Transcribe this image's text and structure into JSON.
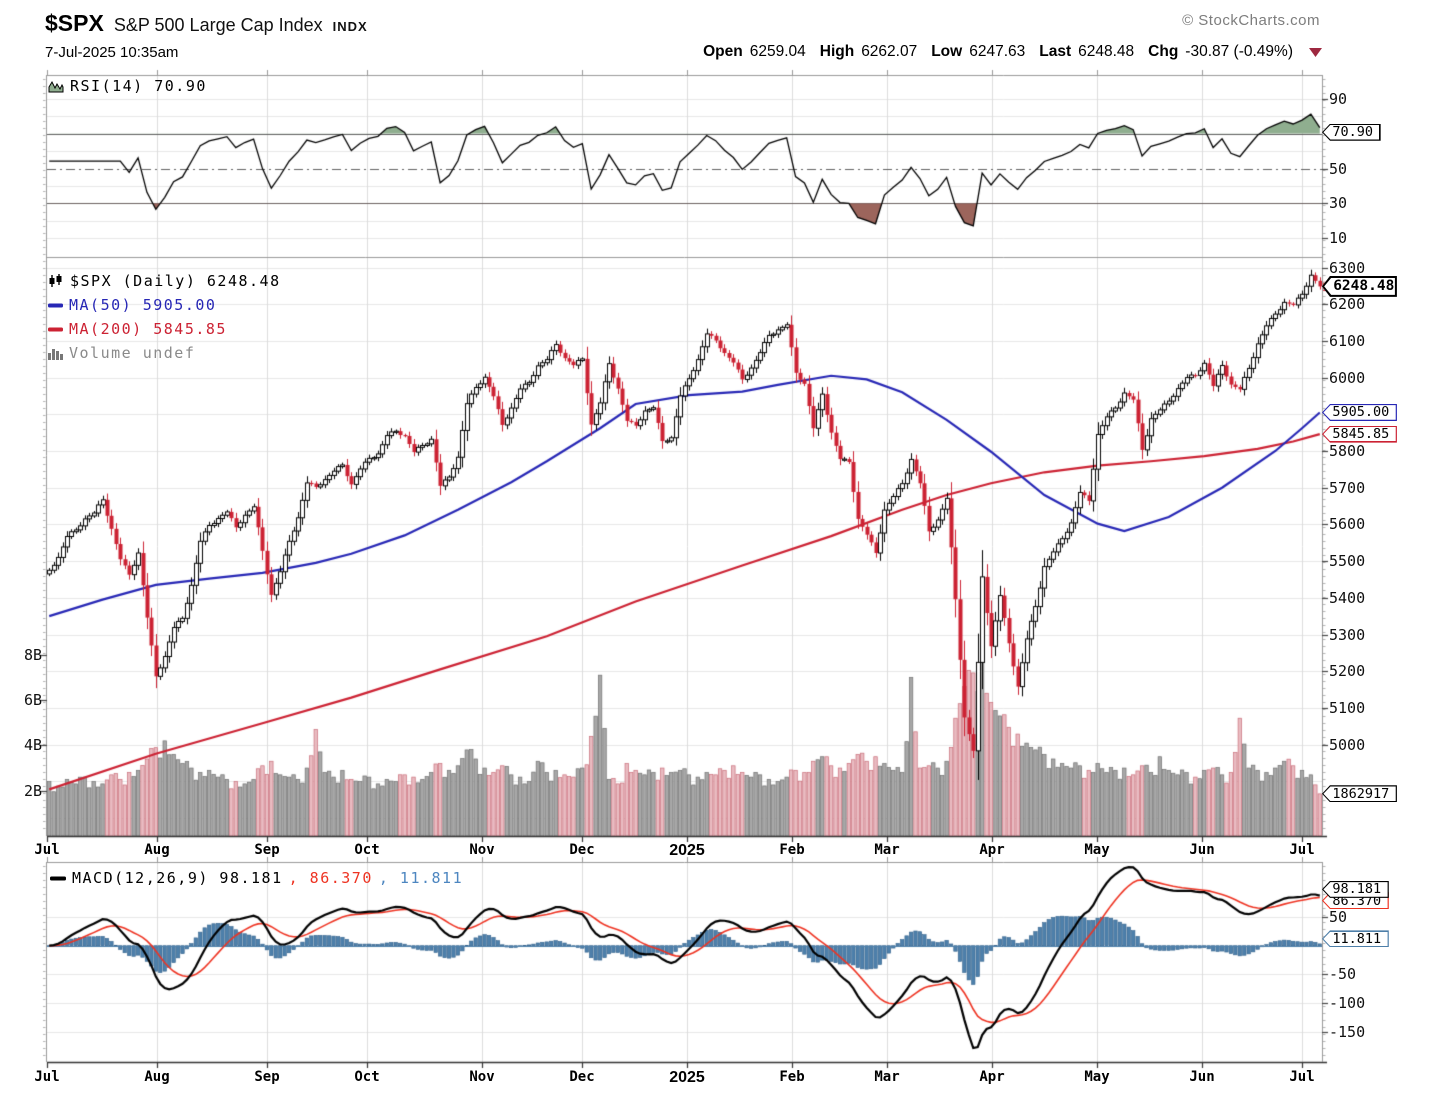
{
  "header": {
    "symbol": "$SPX",
    "name": "S&P 500 Large Cap Index",
    "exchange": "INDX",
    "datetime": "7-Jul-2025 10:35am",
    "copyright": "© StockCharts.com",
    "quote": {
      "open_label": "Open",
      "open": "6259.04",
      "high_label": "High",
      "high": "6262.07",
      "low_label": "Low",
      "low": "6247.63",
      "last_label": "Last",
      "last": "6248.48",
      "chg_label": "Chg",
      "chg": "-30.87 (-0.49%)",
      "direction": "down",
      "direction_color": "#9e2840"
    }
  },
  "colors": {
    "candle_up_fill": "#ffffff",
    "candle_up_border": "#000000",
    "candle_down": "#cc2233",
    "ma50": "#2727b5",
    "ma200": "#cc2233",
    "volume_up_fill": "#a8a8a8",
    "volume_up_border": "#6f6f6f",
    "volume_down_fill": "#e9bcc2",
    "volume_down_border": "#c96c78",
    "rsi_line": "#000000",
    "rsi_fill_high": "#8fae8f",
    "rsi_fill_low": "#9c655c",
    "macd_line": "#000000",
    "macd_signal": "#ee3322",
    "macd_hist_fill": "#4e80ab",
    "macd_hist_border": "#2f5f8a",
    "grid_light": "#e7e7e7",
    "grid_month": "#dcdcdc",
    "level_dark": "#606060",
    "axis_dark": "#333333",
    "panel_border": "#999999",
    "last_marker_fill": "#ffd24d",
    "last_marker_border": "#cc2233"
  },
  "chart_data": [
    {
      "id": "rsi",
      "type": "line",
      "legend": "RSI(14) 70.90",
      "period": 14,
      "calc_period_pts": 8,
      "last": 70.9,
      "last_label": "70.90",
      "ylim": [
        0,
        100
      ],
      "y_ticks": [
        90,
        50,
        30,
        10
      ],
      "overbought": 70,
      "oversold": 30,
      "mid": 50,
      "grid": [
        90,
        80,
        60,
        40,
        20,
        10
      ]
    },
    {
      "id": "price",
      "type": "candlestick",
      "legend": "$SPX (Daily) 6248.48",
      "last": 6248.48,
      "last_label": "6248.48",
      "ma50": {
        "label": "MA(50) 5905.00",
        "value": 5905.0,
        "box": "5905.00",
        "keypoints": [
          [
            0,
            5350
          ],
          [
            6,
            5395
          ],
          [
            12,
            5435
          ],
          [
            18,
            5452
          ],
          [
            24,
            5468
          ],
          [
            30,
            5495
          ],
          [
            34,
            5520
          ],
          [
            40,
            5570
          ],
          [
            46,
            5640
          ],
          [
            52,
            5715
          ],
          [
            56,
            5772
          ],
          [
            62,
            5862
          ],
          [
            66,
            5928
          ],
          [
            72,
            5952
          ],
          [
            78,
            5962
          ],
          [
            82,
            5980
          ],
          [
            88,
            6005
          ],
          [
            92,
            5995
          ],
          [
            96,
            5960
          ],
          [
            101,
            5885
          ],
          [
            106,
            5798
          ],
          [
            112,
            5680
          ],
          [
            118,
            5602
          ],
          [
            121,
            5582
          ],
          [
            126,
            5620
          ],
          [
            132,
            5700
          ],
          [
            138,
            5800
          ],
          [
            141,
            5862
          ],
          [
            143,
            5905
          ]
        ]
      },
      "ma200": {
        "label": "MA(200) 5845.85",
        "value": 5845.85,
        "box": "5845.85",
        "keypoints": [
          [
            0,
            4878
          ],
          [
            12,
            4975
          ],
          [
            24,
            5058
          ],
          [
            34,
            5128
          ],
          [
            44,
            5205
          ],
          [
            56,
            5295
          ],
          [
            66,
            5390
          ],
          [
            78,
            5488
          ],
          [
            88,
            5568
          ],
          [
            96,
            5640
          ],
          [
            101,
            5680
          ],
          [
            106,
            5712
          ],
          [
            112,
            5742
          ],
          [
            118,
            5760
          ],
          [
            124,
            5772
          ],
          [
            130,
            5786
          ],
          [
            136,
            5806
          ],
          [
            140,
            5826
          ],
          [
            143,
            5845.85
          ]
        ]
      },
      "volume_legend": "Volume undef",
      "volume_box": "1862917",
      "volume_last_b": 1.862917,
      "y_ticks": [
        6300,
        6200,
        6100,
        6000,
        5800,
        5700,
        5600,
        5500,
        5400,
        5300,
        5200,
        5100,
        5000
      ],
      "grid_range": [
        4800,
        6300,
        100
      ],
      "volume_ticks": [
        {
          "label": "8B",
          "v": 8
        },
        {
          "label": "6B",
          "v": 6
        },
        {
          "label": "4B",
          "v": 4
        },
        {
          "label": "2B",
          "v": 2
        }
      ],
      "x_axis": {
        "labels": [
          "Jul",
          "Aug",
          "Sep",
          "Oct",
          "Nov",
          "Dec",
          "2025",
          "Feb",
          "Mar",
          "Apr",
          "May",
          "Jun",
          "Jul"
        ],
        "month_trading_days": [
          22,
          22,
          20,
          23,
          20,
          21,
          21,
          19,
          21,
          21,
          21,
          20,
          4
        ],
        "bold_label": "2025"
      },
      "closes": [
        5475,
        5510,
        5567,
        5585,
        5615,
        5631,
        5667,
        5588,
        5505,
        5463,
        5522,
        5346,
        5186,
        5240,
        5319,
        5344,
        5434,
        5554,
        5597,
        5616,
        5634,
        5592,
        5625,
        5648,
        5528,
        5408,
        5471,
        5554,
        5618,
        5713,
        5702,
        5722,
        5745,
        5762,
        5709,
        5751,
        5780,
        5792,
        5842,
        5854,
        5841,
        5797,
        5815,
        5832,
        5705,
        5729,
        5783,
        5929,
        5973,
        6001,
        5949,
        5871,
        5917,
        5969,
        5987,
        6032,
        6049,
        6090,
        6053,
        6034,
        6051,
        5872,
        5931,
        6038,
        5970,
        5882,
        5869,
        5909,
        5918,
        5827,
        5836,
        5950,
        5997,
        6049,
        6119,
        6101,
        6067,
        6041,
        5995,
        6026,
        6068,
        6115,
        6130,
        6144,
        6013,
        5983,
        5862,
        5955,
        5850,
        5778,
        5770,
        5615,
        5572,
        5522,
        5639,
        5676,
        5711,
        5777,
        5712,
        5581,
        5612,
        5671,
        5396,
        5074,
        4983,
        5457,
        5268,
        5406,
        5276,
        5158,
        5288,
        5376,
        5485,
        5525,
        5561,
        5604,
        5687,
        5664,
        5845,
        5893,
        5917,
        5958,
        5940,
        5803,
        5888,
        5912,
        5936,
        5970,
        6000,
        6006,
        6039,
        5977,
        6033,
        5981,
        5968,
        6025,
        6092,
        6141,
        6173,
        6205,
        6198,
        6227,
        6279,
        6248.48
      ],
      "volume_b": [
        2.4,
        2.2,
        2.5,
        2.3,
        2.6,
        2.4,
        2.3,
        2.7,
        2.5,
        2.8,
        2.9,
        3.4,
        3.9,
        4.2,
        3.6,
        3.2,
        3.0,
        2.8,
        2.9,
        2.6,
        2.5,
        2.4,
        2.3,
        2.5,
        3.1,
        3.3,
        2.7,
        2.6,
        2.5,
        3.0,
        4.7,
        2.8,
        2.6,
        2.9,
        2.5,
        2.4,
        2.6,
        2.3,
        2.5,
        2.4,
        2.7,
        2.6,
        2.5,
        2.8,
        3.2,
        2.9,
        3.1,
        3.8,
        3.4,
        3.0,
        2.8,
        3.1,
        2.7,
        2.6,
        2.4,
        3.3,
        2.8,
        2.9,
        2.7,
        2.6,
        3.0,
        4.4,
        7.1,
        2.5,
        2.3,
        3.2,
        2.9,
        2.7,
        2.8,
        3.0,
        2.8,
        2.9,
        2.7,
        2.6,
        2.8,
        2.7,
        2.9,
        3.1,
        2.8,
        2.6,
        2.7,
        2.5,
        2.4,
        2.6,
        2.9,
        2.8,
        3.3,
        3.5,
        3.1,
        3.0,
        3.2,
        3.6,
        3.3,
        3.5,
        3.2,
        2.9,
        2.8,
        7.0,
        3.0,
        3.1,
        3.0,
        3.3,
        5.2,
        6.6,
        7.2,
        7.8,
        5.9,
        5.3,
        4.8,
        4.5,
        4.1,
        3.8,
        3.6,
        3.4,
        3.2,
        3.0,
        3.1,
        2.9,
        3.2,
        2.8,
        2.9,
        3.0,
        2.7,
        3.1,
        2.8,
        3.5,
        2.9,
        2.7,
        2.8,
        2.6,
        2.9,
        3.0,
        2.7,
        2.8,
        5.2,
        3.0,
        2.9,
        2.8,
        3.0,
        3.3,
        3.1,
        2.9,
        2.7,
        1.86
      ]
    },
    {
      "id": "macd",
      "type": "line+histogram",
      "params": [
        12,
        26,
        9
      ],
      "legend_macd": "MACD(12,26,9) 98.181",
      "legend_signal": ", 86.370",
      "legend_hist": ", 11.811",
      "macd": 98.181,
      "signal": 86.37,
      "hist": 11.811,
      "boxes": {
        "macd": "98.181",
        "signal": "86.370",
        "hist": "11.811"
      },
      "y_ticks": [
        50,
        -50,
        -100,
        -150
      ],
      "grid": [
        50,
        0,
        -50,
        -100,
        -150
      ],
      "ema_periods_pts": [
        13,
        29,
        10
      ]
    }
  ]
}
